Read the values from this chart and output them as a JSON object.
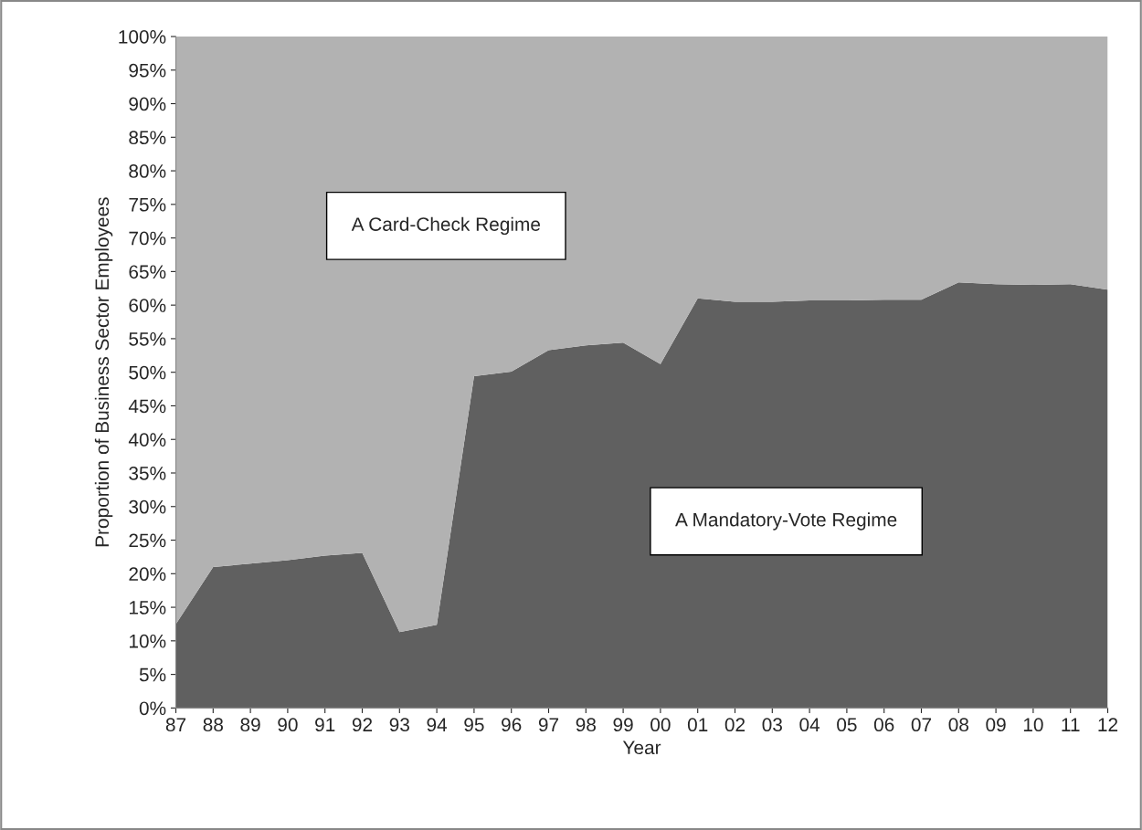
{
  "chart_data": {
    "type": "area",
    "stacked": true,
    "xlabel": "Year",
    "ylabel": "Proportion of Business Sector Employees",
    "categories": [
      "87",
      "88",
      "89",
      "90",
      "91",
      "92",
      "93",
      "94",
      "95",
      "96",
      "97",
      "98",
      "99",
      "00",
      "01",
      "02",
      "03",
      "04",
      "05",
      "06",
      "07",
      "08",
      "09",
      "10",
      "11",
      "12"
    ],
    "series": [
      {
        "name": "A Mandatory-Vote Regime",
        "color": "#606060",
        "values": [
          12.5,
          21.0,
          21.5,
          22.0,
          22.7,
          23.1,
          11.3,
          12.4,
          49.4,
          50.1,
          53.3,
          54.0,
          54.4,
          51.2,
          61.0,
          60.5,
          60.5,
          60.7,
          60.7,
          60.8,
          60.8,
          63.4,
          63.1,
          63.0,
          63.1,
          62.3
        ]
      },
      {
        "name": "A Card-Check Regime",
        "color": "#b2b2b2",
        "values": [
          87.5,
          79.0,
          78.5,
          78.0,
          77.3,
          76.9,
          88.7,
          87.6,
          50.6,
          49.9,
          46.7,
          46.0,
          45.6,
          48.8,
          39.0,
          39.5,
          39.5,
          39.3,
          39.3,
          39.2,
          39.2,
          36.6,
          36.9,
          37.0,
          36.9,
          37.7
        ]
      }
    ],
    "ylim": [
      0,
      100
    ],
    "yticks": [
      {
        "value": 0,
        "label": "0%"
      },
      {
        "value": 5,
        "label": "5%"
      },
      {
        "value": 10,
        "label": "10%"
      },
      {
        "value": 15,
        "label": "15%"
      },
      {
        "value": 20,
        "label": "20%"
      },
      {
        "value": 25,
        "label": "25%"
      },
      {
        "value": 30,
        "label": "30%"
      },
      {
        "value": 35,
        "label": "35%"
      },
      {
        "value": 40,
        "label": "40%"
      },
      {
        "value": 45,
        "label": "45%"
      },
      {
        "value": 50,
        "label": "50%"
      },
      {
        "value": 55,
        "label": "55%"
      },
      {
        "value": 60,
        "label": "60%"
      },
      {
        "value": 65,
        "label": "65%"
      },
      {
        "value": 70,
        "label": "70%"
      },
      {
        "value": 75,
        "label": "75%"
      },
      {
        "value": 80,
        "label": "80%"
      },
      {
        "value": 85,
        "label": "85%"
      },
      {
        "value": 90,
        "label": "90%"
      },
      {
        "value": 95,
        "label": "95%"
      },
      {
        "value": 100,
        "label": "100%"
      }
    ]
  }
}
